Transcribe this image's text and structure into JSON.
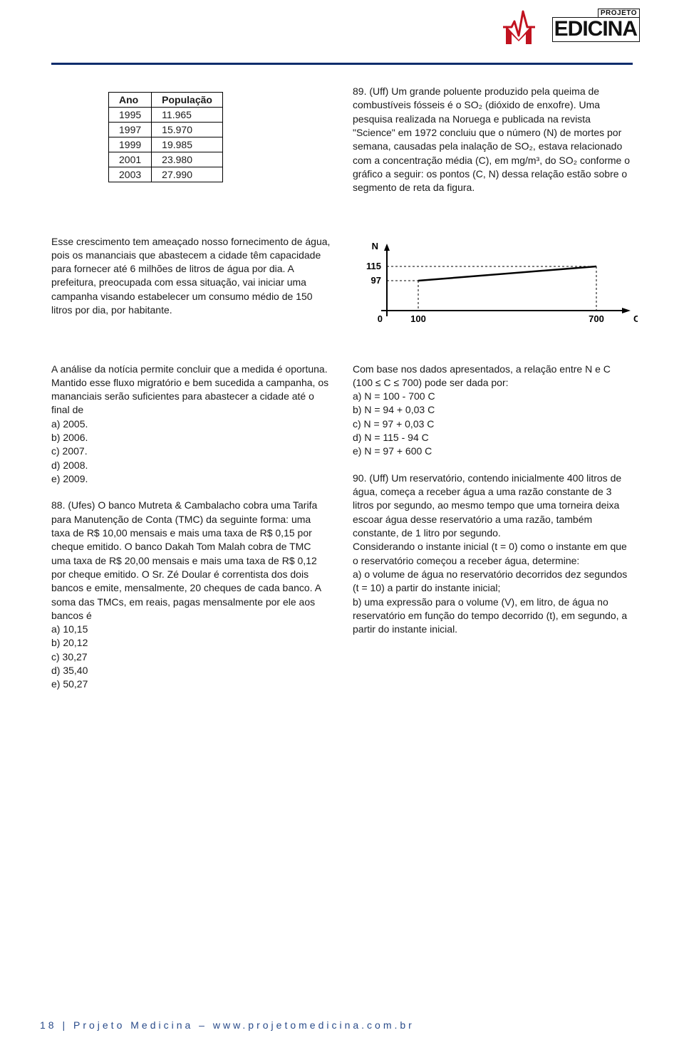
{
  "logo": {
    "projeto": "PROJETO",
    "edicina": "EDICINA",
    "brand_red": "#c1121f"
  },
  "rule_color": "#0a2c6b",
  "table": {
    "columns": [
      "Ano",
      "População"
    ],
    "rows": [
      [
        "1995",
        "11.965"
      ],
      [
        "1997",
        "15.970"
      ],
      [
        "1999",
        "19.985"
      ],
      [
        "2001",
        "23.980"
      ],
      [
        "2003",
        "27.990"
      ]
    ]
  },
  "q89": {
    "intro": "89. (Uff) Um grande poluente produzido pela queima de combustíveis fósseis é o SO₂ (dióxido de enxofre). Uma pesquisa realizada na Noruega e publicada na revista \"Science\" em 1972 concluiu que o número (N) de mortes por semana, causadas pela inalação de SO₂, estava relacionado com a concentração média (C), em mg/m³, do SO₂ conforme o gráfico a seguir: os pontos (C, N) dessa relação estão sobre o segmento de reta da figura."
  },
  "left_para1": "Esse crescimento tem ameaçado nosso fornecimento de água, pois os mananciais que abastecem a cidade têm capacidade para fornecer até 6 milhões de litros de água por dia. A prefeitura, preocupada com essa situação, vai iniciar uma campanha visando estabelecer um consumo médio de 150 litros por dia, por habitante.",
  "left_para2": "A análise da notícia permite concluir que a medida é oportuna. Mantido esse fluxo migratório e bem sucedida a campanha, os mananciais serão suficientes para abastecer a cidade até o final de",
  "q87_opts": [
    "a) 2005.",
    "b) 2006.",
    "c) 2007.",
    "d) 2008.",
    "e) 2009."
  ],
  "q88": {
    "text": "88. (Ufes) O banco Mutreta & Cambalacho cobra uma Tarifa para Manutenção de Conta (TMC) da seguinte forma: uma taxa de R$ 10,00 mensais e mais uma taxa de R$ 0,15 por cheque emitido. O banco Dakah Tom Malah cobra de TMC uma taxa de R$ 20,00 mensais e mais uma taxa de R$ 0,12 por cheque emitido. O Sr. Zé Doular é correntista dos dois bancos e emite, mensalmente, 20 cheques de cada banco. A soma das TMCs, em reais, pagas mensalmente por ele aos bancos é",
    "opts": [
      "a) 10,15",
      "b) 20,12",
      "c) 30,27",
      "d) 35,40",
      "e) 50,27"
    ]
  },
  "chart": {
    "type": "line",
    "axis_labels": {
      "x": "C",
      "y": "N"
    },
    "y_ticks": [
      97,
      115
    ],
    "x_ticks": [
      0,
      100,
      700
    ],
    "points": [
      [
        100,
        97
      ],
      [
        700,
        115
      ]
    ],
    "stroke": "#000000",
    "grid_dash": "3,3",
    "font_size": 12,
    "font_weight": "bold"
  },
  "q89_tail": "Com base nos dados apresentados, a relação entre N e C (100 ≤ C ≤ 700) pode ser dada por:",
  "q89_opts": [
    "a) N = 100 - 700 C",
    "b) N = 94 + 0,03 C",
    "c) N = 97 + 0,03 C",
    "d) N = 115 - 94 C",
    "e) N = 97 + 600 C"
  ],
  "q90": {
    "text": "90. (Uff) Um reservatório, contendo inicialmente 400 litros de água, começa a receber água a uma razão constante de 3 litros por segundo, ao mesmo tempo que uma torneira deixa escoar água desse reservatório a uma razão, também constante, de 1 litro por segundo.",
    "cont": "Considerando o instante inicial (t = 0) como o instante em que o reservatório começou a receber água, determine:",
    "a": "a) o volume de água no reservatório decorridos dez segundos (t = 10) a partir do instante inicial;",
    "b": "b) uma expressão para o volume (V), em litro, de água no reservatório em função do tempo decorrido (t), em segundo, a partir do instante inicial."
  },
  "footer": {
    "page_label": "18",
    "sep": "|",
    "brand": "Projeto Medicina",
    "dash": "–",
    "url": "www.projetomedicina.com.br"
  }
}
